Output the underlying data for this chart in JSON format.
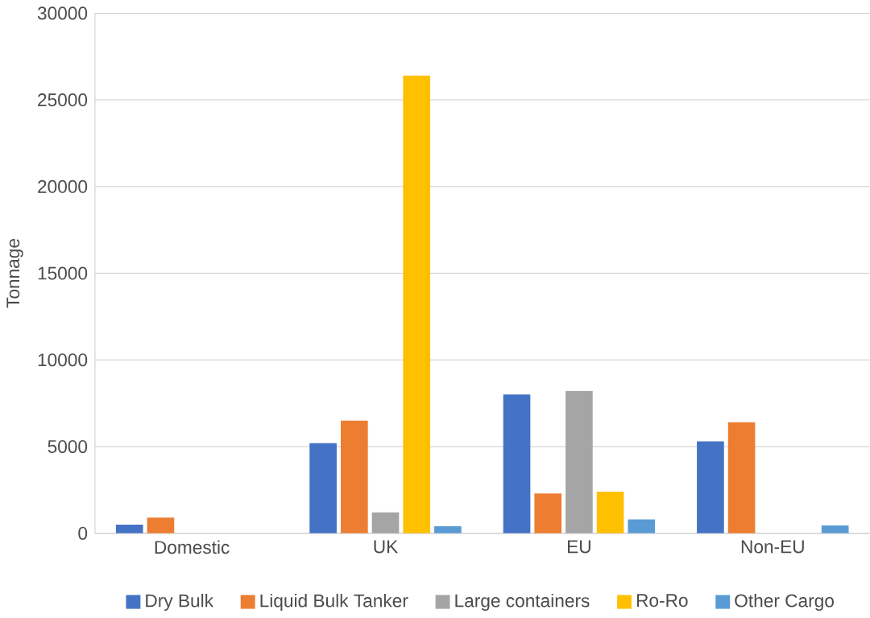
{
  "chart_data": {
    "type": "bar",
    "ylabel": "Tonnage",
    "categories": [
      "Domestic",
      "UK",
      "EU",
      "Non-EU"
    ],
    "series": [
      {
        "name": "Dry Bulk",
        "color": "#4472c4",
        "values": [
          500,
          5200,
          8000,
          5300
        ]
      },
      {
        "name": "Liquid Bulk Tanker",
        "color": "#ed7d31",
        "values": [
          900,
          6500,
          2300,
          6400
        ]
      },
      {
        "name": "Large containers",
        "color": "#a5a5a5",
        "values": [
          0,
          1200,
          8200,
          0
        ]
      },
      {
        "name": "Ro-Ro",
        "color": "#ffc000",
        "values": [
          0,
          26400,
          2400,
          0
        ]
      },
      {
        "name": "Other Cargo",
        "color": "#5b9bd5",
        "values": [
          0,
          400,
          800,
          450
        ]
      }
    ],
    "ylim": [
      0,
      30000
    ],
    "yticks": [
      0,
      5000,
      10000,
      15000,
      20000,
      25000,
      30000
    ],
    "grid": "y",
    "legend": "bottom"
  }
}
